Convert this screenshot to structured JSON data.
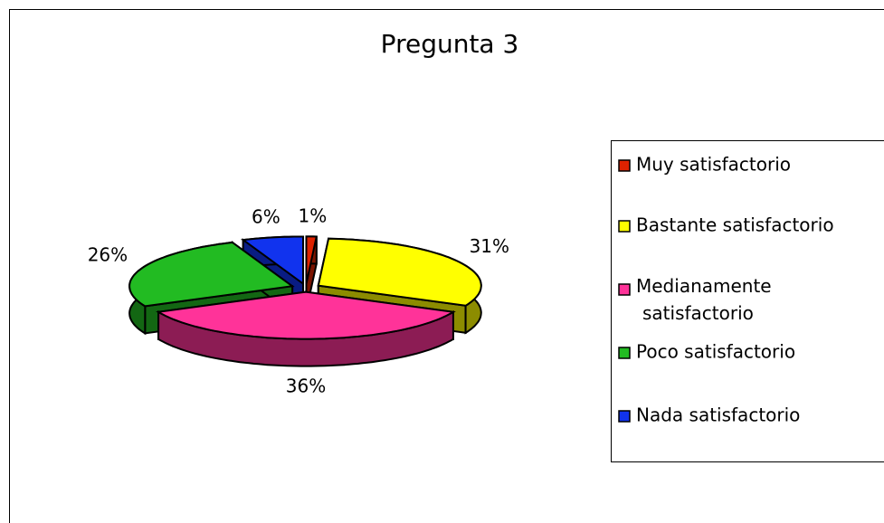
{
  "chart_data": {
    "type": "pie",
    "title": "Pregunta 3",
    "categories": [
      "Muy satisfactorio",
      "Bastante satisfactorio",
      "Medianamente satisfactorio",
      "Poco satisfactorio",
      "Nada satisfactorio"
    ],
    "values": [
      1,
      31,
      36,
      26,
      6
    ],
    "value_labels": [
      "1%",
      "31%",
      "36%",
      "26%",
      "6%"
    ],
    "colors": [
      "#dd2200",
      "#ffff00",
      "#ff3399",
      "#22bb22",
      "#1133ee"
    ],
    "legend": "right"
  }
}
